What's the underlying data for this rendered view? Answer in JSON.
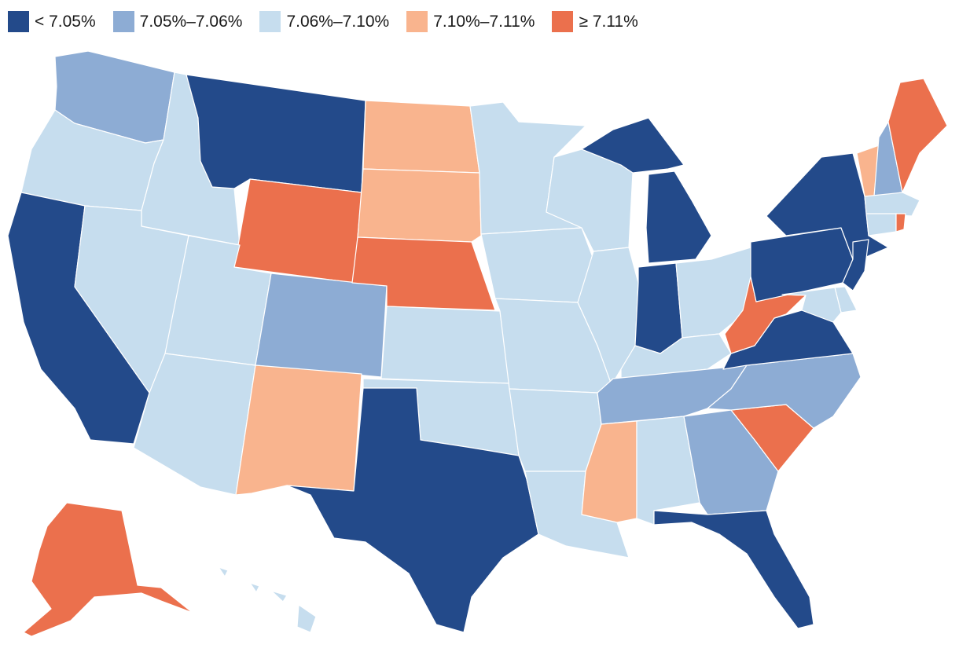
{
  "legend": {
    "bins": [
      {
        "label": "< 7.05%",
        "color": "#234a8a"
      },
      {
        "label": "7.05%–7.06%",
        "color": "#8dacd4"
      },
      {
        "label": "7.06%–7.10%",
        "color": "#c6ddee"
      },
      {
        "label": "7.10%–7.11%",
        "color": "#f9b48e"
      },
      {
        "label": "≥ 7.11%",
        "color": "#eb704d"
      }
    ]
  },
  "states": {
    "WA": 1,
    "OR": 2,
    "CA": 0,
    "ID": 2,
    "NV": 2,
    "MT": 0,
    "WY": 4,
    "UT": 2,
    "AZ": 2,
    "CO": 1,
    "NM": 3,
    "ND": 3,
    "SD": 3,
    "NE": 4,
    "KS": 2,
    "OK": 2,
    "TX": 0,
    "MN": 2,
    "IA": 2,
    "MO": 2,
    "AR": 2,
    "LA": 2,
    "WI": 2,
    "IL": 2,
    "MI": 0,
    "IN": 0,
    "OH": 2,
    "KY": 2,
    "TN": 1,
    "MS": 3,
    "AL": 2,
    "GA": 1,
    "FL": 0,
    "SC": 4,
    "NC": 1,
    "VA": 0,
    "WV": 4,
    "PA": 0,
    "NY": 0,
    "VT": 3,
    "NH": 1,
    "ME": 4,
    "MA": 2,
    "CT": 2,
    "RI": 4,
    "NJ": 0,
    "DE": 2,
    "MD": 2,
    "AK": 4,
    "HI": 2
  }
}
